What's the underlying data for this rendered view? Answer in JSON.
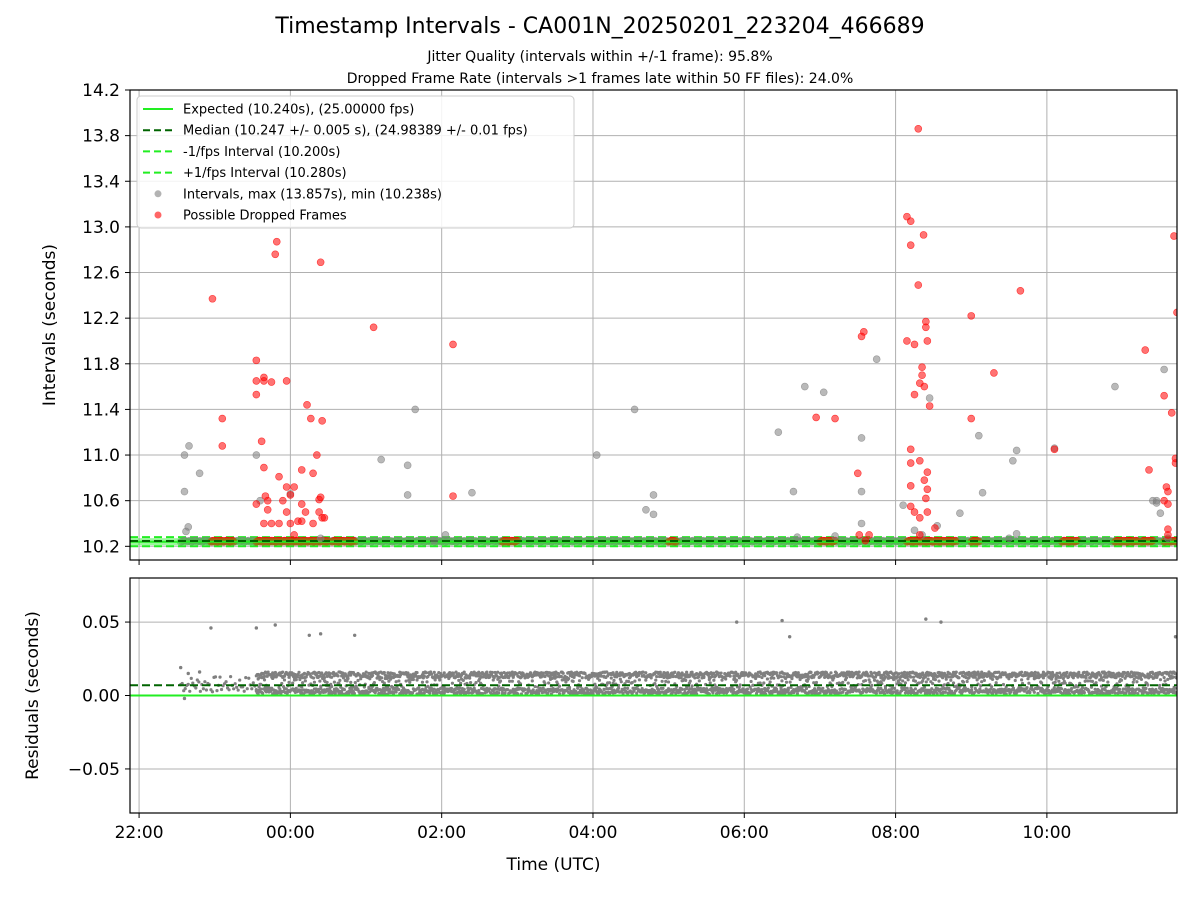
{
  "title": "Timestamp Intervals - CA001N_20250201_223204_466689",
  "subtitle1": "Jitter Quality (intervals within +/-1 frame): 95.8%",
  "subtitle2": "Dropped Frame Rate (intervals >1 frames late within 50 FF files): 24.0%",
  "colors": {
    "expected": "#22ee22",
    "median": "#006400",
    "interval_band": "#22ee22",
    "intervals": "#808080",
    "dropped": "#ff0000",
    "grid": "#b0b0b0"
  },
  "chart_data": [
    {
      "type": "scatter",
      "name": "intervals",
      "ylabel": "Intervals (seconds)",
      "xlabel": "",
      "x_unit": "hours since 22:00 UTC",
      "xlim": [
        -0.12,
        13.72
      ],
      "ylim": [
        10.08,
        14.2
      ],
      "yticks": [
        10.2,
        10.6,
        11.0,
        11.4,
        11.8,
        12.2,
        12.6,
        13.0,
        13.4,
        13.8,
        14.2
      ],
      "ytick_labels": [
        "10.2",
        "10.6",
        "11.0",
        "11.4",
        "11.8",
        "12.2",
        "12.6",
        "13.0",
        "13.4",
        "13.8",
        "14.2"
      ],
      "grid": true,
      "legend_position": "top-left",
      "legend": [
        {
          "label": "Expected (10.240s), (25.00000 fps)",
          "style": "line-solid"
        },
        {
          "label": "Median (10.247 +/- 0.005 s), (24.98389 +/- 0.01 fps)",
          "style": "line-dashed-dark"
        },
        {
          "label": "-1/fps Interval (10.200s)",
          "style": "line-dashed"
        },
        {
          "label": "+1/fps Interval (10.280s)",
          "style": "line-dashed"
        },
        {
          "label": "Intervals, max (13.857s), min (10.238s)",
          "style": "marker-gray"
        },
        {
          "label": "Possible Dropped Frames",
          "style": "marker-red"
        }
      ],
      "reference_lines": {
        "expected": 10.24,
        "median": 10.247,
        "minus_1fps": 10.2,
        "plus_1fps": 10.28
      },
      "baseline_dense_segments": [
        {
          "from": 0.55,
          "to": 13.72,
          "y": 10.245,
          "color": "gray"
        },
        {
          "from": 0.95,
          "to": 1.25,
          "y": 10.245,
          "color": "red"
        },
        {
          "from": 1.55,
          "to": 2.5,
          "y": 10.245,
          "color": "red"
        },
        {
          "from": 2.55,
          "to": 2.85,
          "y": 10.245,
          "color": "red"
        },
        {
          "from": 4.8,
          "to": 5.0,
          "y": 10.245,
          "color": "red"
        },
        {
          "from": 7.0,
          "to": 7.1,
          "y": 10.245,
          "color": "red"
        },
        {
          "from": 9.0,
          "to": 9.2,
          "y": 10.245,
          "color": "red"
        },
        {
          "from": 10.15,
          "to": 10.5,
          "y": 10.245,
          "color": "red"
        },
        {
          "from": 10.5,
          "to": 10.8,
          "y": 10.245,
          "color": "red"
        },
        {
          "from": 11.0,
          "to": 11.1,
          "y": 10.245,
          "color": "red"
        },
        {
          "from": 12.2,
          "to": 12.4,
          "y": 10.245,
          "color": "red"
        },
        {
          "from": 12.9,
          "to": 13.1,
          "y": 10.245,
          "color": "red"
        },
        {
          "from": 13.05,
          "to": 13.2,
          "y": 10.245,
          "color": "red"
        },
        {
          "from": 13.55,
          "to": 13.72,
          "y": 10.245,
          "color": "red"
        },
        {
          "from": 13.25,
          "to": 13.4,
          "y": 10.245,
          "color": "red"
        }
      ],
      "gray_points": [
        [
          0.6,
          10.68
        ],
        [
          0.62,
          10.33
        ],
        [
          0.6,
          11.0
        ],
        [
          0.66,
          11.08
        ],
        [
          0.65,
          10.37
        ],
        [
          0.8,
          10.84
        ],
        [
          1.55,
          11.0
        ],
        [
          1.6,
          10.6
        ],
        [
          2.0,
          10.66
        ],
        [
          2.4,
          10.27
        ],
        [
          3.2,
          10.96
        ],
        [
          3.55,
          10.91
        ],
        [
          3.55,
          10.65
        ],
        [
          3.65,
          11.4
        ],
        [
          3.9,
          10.25
        ],
        [
          4.05,
          10.3
        ],
        [
          4.4,
          10.67
        ],
        [
          6.05,
          11.0
        ],
        [
          6.55,
          11.4
        ],
        [
          6.7,
          10.52
        ],
        [
          6.8,
          10.48
        ],
        [
          6.8,
          10.65
        ],
        [
          8.45,
          11.2
        ],
        [
          8.65,
          10.68
        ],
        [
          8.7,
          10.28
        ],
        [
          8.8,
          11.6
        ],
        [
          9.05,
          11.55
        ],
        [
          9.2,
          10.29
        ],
        [
          9.55,
          11.15
        ],
        [
          9.55,
          10.68
        ],
        [
          9.55,
          10.4
        ],
        [
          9.75,
          11.84
        ],
        [
          10.1,
          10.56
        ],
        [
          10.25,
          10.34
        ],
        [
          10.35,
          10.3
        ],
        [
          10.45,
          11.5
        ],
        [
          10.55,
          10.38
        ],
        [
          10.85,
          10.49
        ],
        [
          11.1,
          11.17
        ],
        [
          11.15,
          10.67
        ],
        [
          11.5,
          10.27
        ],
        [
          11.55,
          10.95
        ],
        [
          11.6,
          10.31
        ],
        [
          11.6,
          11.04
        ],
        [
          12.1,
          11.06
        ],
        [
          12.9,
          11.6
        ],
        [
          13.4,
          10.6
        ],
        [
          13.45,
          10.6
        ],
        [
          13.5,
          10.49
        ],
        [
          13.45,
          10.58
        ],
        [
          13.55,
          11.75
        ],
        [
          13.6,
          10.27
        ]
      ],
      "red_points": [
        [
          0.97,
          12.37
        ],
        [
          1.1,
          11.32
        ],
        [
          1.1,
          11.08
        ],
        [
          1.55,
          11.83
        ],
        [
          1.55,
          11.65
        ],
        [
          1.55,
          11.53
        ],
        [
          1.55,
          10.57
        ],
        [
          1.62,
          11.12
        ],
        [
          1.65,
          11.65
        ],
        [
          1.65,
          11.68
        ],
        [
          1.65,
          10.89
        ],
        [
          1.67,
          10.64
        ],
        [
          1.7,
          10.6
        ],
        [
          1.7,
          10.52
        ],
        [
          1.75,
          11.64
        ],
        [
          1.8,
          12.76
        ],
        [
          1.82,
          12.87
        ],
        [
          1.85,
          10.81
        ],
        [
          1.65,
          10.4
        ],
        [
          1.75,
          10.4
        ],
        [
          1.85,
          10.4
        ],
        [
          1.9,
          10.6
        ],
        [
          1.95,
          10.5
        ],
        [
          1.95,
          10.72
        ],
        [
          1.95,
          11.65
        ],
        [
          2.0,
          10.65
        ],
        [
          2.05,
          10.72
        ],
        [
          2.0,
          10.4
        ],
        [
          2.05,
          10.3
        ],
        [
          2.1,
          10.42
        ],
        [
          2.15,
          10.87
        ],
        [
          2.15,
          10.42
        ],
        [
          2.15,
          10.57
        ],
        [
          2.2,
          10.5
        ],
        [
          2.22,
          11.44
        ],
        [
          2.27,
          11.32
        ],
        [
          2.3,
          10.84
        ],
        [
          2.3,
          10.4
        ],
        [
          2.35,
          11.0
        ],
        [
          2.38,
          10.5
        ],
        [
          2.38,
          10.61
        ],
        [
          2.4,
          10.63
        ],
        [
          2.4,
          12.69
        ],
        [
          2.42,
          11.3
        ],
        [
          2.42,
          10.45
        ],
        [
          2.45,
          10.45
        ],
        [
          3.1,
          12.12
        ],
        [
          4.15,
          11.97
        ],
        [
          4.15,
          10.64
        ],
        [
          8.95,
          11.33
        ],
        [
          9.2,
          11.32
        ],
        [
          9.5,
          10.84
        ],
        [
          9.52,
          10.3
        ],
        [
          9.55,
          12.04
        ],
        [
          9.58,
          12.08
        ],
        [
          9.6,
          10.25
        ],
        [
          9.65,
          10.3
        ],
        [
          10.15,
          13.09
        ],
        [
          10.15,
          12.0
        ],
        [
          10.2,
          12.84
        ],
        [
          10.2,
          13.05
        ],
        [
          10.2,
          11.05
        ],
        [
          10.2,
          10.93
        ],
        [
          10.2,
          10.73
        ],
        [
          10.2,
          10.55
        ],
        [
          10.25,
          11.53
        ],
        [
          10.25,
          11.97
        ],
        [
          10.25,
          10.5
        ],
        [
          10.3,
          12.49
        ],
        [
          10.3,
          13.86
        ],
        [
          10.32,
          11.63
        ],
        [
          10.32,
          10.95
        ],
        [
          10.32,
          10.45
        ],
        [
          10.32,
          10.3
        ],
        [
          10.35,
          11.7
        ],
        [
          10.35,
          11.77
        ],
        [
          10.37,
          12.93
        ],
        [
          10.38,
          11.6
        ],
        [
          10.38,
          10.78
        ],
        [
          10.4,
          12.17
        ],
        [
          10.4,
          12.12
        ],
        [
          10.42,
          12.0
        ],
        [
          10.4,
          10.62
        ],
        [
          10.42,
          10.7
        ],
        [
          10.42,
          10.85
        ],
        [
          10.42,
          10.5
        ],
        [
          10.45,
          11.43
        ],
        [
          10.52,
          10.36
        ],
        [
          11.0,
          12.22
        ],
        [
          11.0,
          11.32
        ],
        [
          11.3,
          11.72
        ],
        [
          11.65,
          12.44
        ],
        [
          12.1,
          11.05
        ],
        [
          13.3,
          11.92
        ],
        [
          13.35,
          10.87
        ],
        [
          13.55,
          11.52
        ],
        [
          13.58,
          10.72
        ],
        [
          13.6,
          10.68
        ],
        [
          13.6,
          10.57
        ],
        [
          13.6,
          10.35
        ],
        [
          13.6,
          10.3
        ],
        [
          13.65,
          11.37
        ],
        [
          13.7,
          10.97
        ],
        [
          13.7,
          10.93
        ],
        [
          13.72,
          12.25
        ],
        [
          13.68,
          12.92
        ],
        [
          13.55,
          10.6
        ]
      ]
    },
    {
      "type": "scatter",
      "name": "residuals",
      "ylabel": "Residuals (seconds)",
      "xlabel": "Time (UTC)",
      "xlim": [
        -0.12,
        13.72
      ],
      "ylim": [
        -0.08,
        0.08
      ],
      "yticks": [
        -0.05,
        0.0,
        0.05
      ],
      "ytick_labels": [
        "−0.05",
        "0.00",
        "0.05"
      ],
      "xticks": [
        0,
        2,
        4,
        6,
        8,
        10,
        12
      ],
      "xtick_labels": [
        "22:00",
        "00:00",
        "02:00",
        "04:00",
        "06:00",
        "08:00",
        "10:00"
      ],
      "grid": true,
      "reference_lines": {
        "expected": 0.0,
        "median": 0.007
      },
      "dense_band": {
        "from": 1.55,
        "to": 13.72,
        "lo": 0.001,
        "hi": 0.016,
        "early_from": 0.55,
        "early_lo": 0.002,
        "early_hi": 0.013
      },
      "outliers": [
        [
          0.55,
          0.019
        ],
        [
          0.6,
          -0.002
        ],
        [
          0.65,
          0.015
        ],
        [
          0.8,
          0.016
        ],
        [
          0.95,
          0.046
        ],
        [
          1.55,
          0.046
        ],
        [
          1.8,
          0.048
        ],
        [
          2.25,
          0.041
        ],
        [
          2.4,
          0.042
        ],
        [
          2.85,
          0.041
        ],
        [
          7.9,
          0.05
        ],
        [
          8.5,
          0.051
        ],
        [
          8.6,
          0.04
        ],
        [
          10.4,
          0.052
        ],
        [
          10.6,
          0.05
        ],
        [
          13.7,
          0.04
        ]
      ]
    }
  ]
}
